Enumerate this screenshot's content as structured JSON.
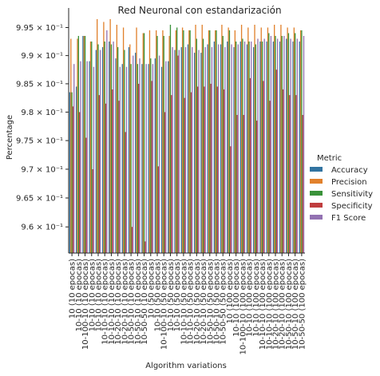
{
  "chart_data": {
    "type": "bar",
    "title": "Red Neuronal con estandarización",
    "xlabel": "Algorithm variations",
    "ylabel": "Percentage",
    "ylim": [
      0.9555,
      0.9985
    ],
    "yticks": [
      {
        "value": 0.96,
        "label": "9.6 × 10⁻¹"
      },
      {
        "value": 0.965,
        "label": "9.65 × 10⁻¹"
      },
      {
        "value": 0.97,
        "label": "9.7 × 10⁻¹"
      },
      {
        "value": 0.975,
        "label": "9.75 × 10⁻¹"
      },
      {
        "value": 0.98,
        "label": "9.8 × 10⁻¹"
      },
      {
        "value": 0.985,
        "label": "9.85 × 10⁻¹"
      },
      {
        "value": 0.99,
        "label": "9.9 × 10⁻¹"
      },
      {
        "value": 0.995,
        "label": "9.95 × 10⁻¹"
      }
    ],
    "log_scale_y": true,
    "grid": false,
    "legend_title": "Metric",
    "legend_position": "right",
    "categories": [
      "10 (10 epocas)",
      "10-10 (10 epocas)",
      "10-100-10 (10 epocas)",
      "10-10 (10 epocas)",
      "10-10 (10 epocas)",
      "10-10-10 (10 epocas)",
      "10-10-10 (10 epocas)",
      "10-20-10 (10 epocas)",
      "10-20-10 (10 epocas)",
      "10-50-10 (10 epocas)",
      "10-50-10 (10 epocas)",
      "10-50-50 (10 epocas)",
      "10 (50 epocas)",
      "10-10 (50 epocas)",
      "10-100-10 (50 epocas)",
      "10-10 (50 epocas)",
      "10-10 (50 epocas)",
      "10-10-10 (50 epocas)",
      "10-10-10 (50 epocas)",
      "10-20-10 (50 epocas)",
      "10-20-10 (50 epocas)",
      "10-50-10 (50 epocas)",
      "10-50-10 (50 epocas)",
      "10-50-50 (50 epocas)",
      "10 (100 epocas)",
      "10-10 (100 epocas)",
      "10-100-10 (100 epocas)",
      "10-10 (100 epocas)",
      "10-10 (100 epocas)",
      "10-10-10 (100 epocas)",
      "10-10-10 (100 epocas)",
      "10-20-10 (100 epocas)",
      "10-20-10 (100 epocas)",
      "10-50-10 (100 epocas)",
      "10-50-10 (100 epocas)",
      "10-50-50 (100 epocas)"
    ],
    "series": [
      {
        "name": "Accuracy",
        "color": "#3274a1",
        "values": [
          0.9835,
          0.9845,
          0.9935,
          0.989,
          0.991,
          0.9915,
          0.9925,
          0.9895,
          0.9885,
          0.9915,
          0.9905,
          0.9885,
          0.9885,
          0.9895,
          0.988,
          0.989,
          0.991,
          0.9915,
          0.992,
          0.9905,
          0.9905,
          0.992,
          0.9925,
          0.992,
          0.9925,
          0.9915,
          0.9925,
          0.992,
          0.9915,
          0.9925,
          0.9925,
          0.9925,
          0.9925,
          0.993,
          0.9925,
          0.9925
        ]
      },
      {
        "name": "Precision",
        "color": "#e1812c",
        "values": [
          0.993,
          0.993,
          0.9935,
          0.9925,
          0.9965,
          0.996,
          0.9965,
          0.9955,
          0.995,
          0.992,
          0.995,
          0.994,
          0.9945,
          0.9945,
          0.9945,
          0.9935,
          0.9945,
          0.995,
          0.9945,
          0.9955,
          0.9955,
          0.9945,
          0.9945,
          0.9955,
          0.995,
          0.9945,
          0.9955,
          0.995,
          0.9955,
          0.995,
          0.995,
          0.9955,
          0.9955,
          0.995,
          0.995,
          0.9945
        ]
      },
      {
        "name": "Sensitivity",
        "color": "#3a923a",
        "values": [
          0.9835,
          0.9935,
          0.9935,
          0.9925,
          0.992,
          0.9925,
          0.992,
          0.9915,
          0.991,
          0.9885,
          0.9885,
          0.994,
          0.9895,
          0.9935,
          0.9935,
          0.9955,
          0.995,
          0.9945,
          0.9945,
          0.993,
          0.993,
          0.9945,
          0.9945,
          0.9935,
          0.9945,
          0.9925,
          0.993,
          0.9925,
          0.992,
          0.9925,
          0.994,
          0.9935,
          0.9935,
          0.994,
          0.994,
          0.9945
        ]
      },
      {
        "name": "Specificity",
        "color": "#c03d3e",
        "values": [
          0.981,
          0.98,
          0.9755,
          0.97,
          0.983,
          0.9815,
          0.984,
          0.982,
          0.9765,
          0.96,
          0.985,
          0.9575,
          0.9855,
          0.9705,
          0.98,
          0.983,
          0.99,
          0.9825,
          0.9835,
          0.9845,
          0.9845,
          0.985,
          0.9845,
          0.984,
          0.974,
          0.9795,
          0.9795,
          0.986,
          0.9785,
          0.9855,
          0.982,
          0.9875,
          0.984,
          0.983,
          0.983,
          0.9795
        ]
      },
      {
        "name": "F1 Score",
        "color": "#9372b2",
        "values": [
          0.9885,
          0.989,
          0.989,
          0.988,
          0.991,
          0.9945,
          0.9925,
          0.988,
          0.988,
          0.99,
          0.9895,
          0.9885,
          0.9885,
          0.99,
          0.989,
          0.9915,
          0.991,
          0.9915,
          0.9915,
          0.991,
          0.9915,
          0.9915,
          0.992,
          0.9915,
          0.992,
          0.992,
          0.9925,
          0.9925,
          0.993,
          0.993,
          0.9935,
          0.993,
          0.9935,
          0.993,
          0.993,
          0.9935
        ]
      }
    ]
  }
}
